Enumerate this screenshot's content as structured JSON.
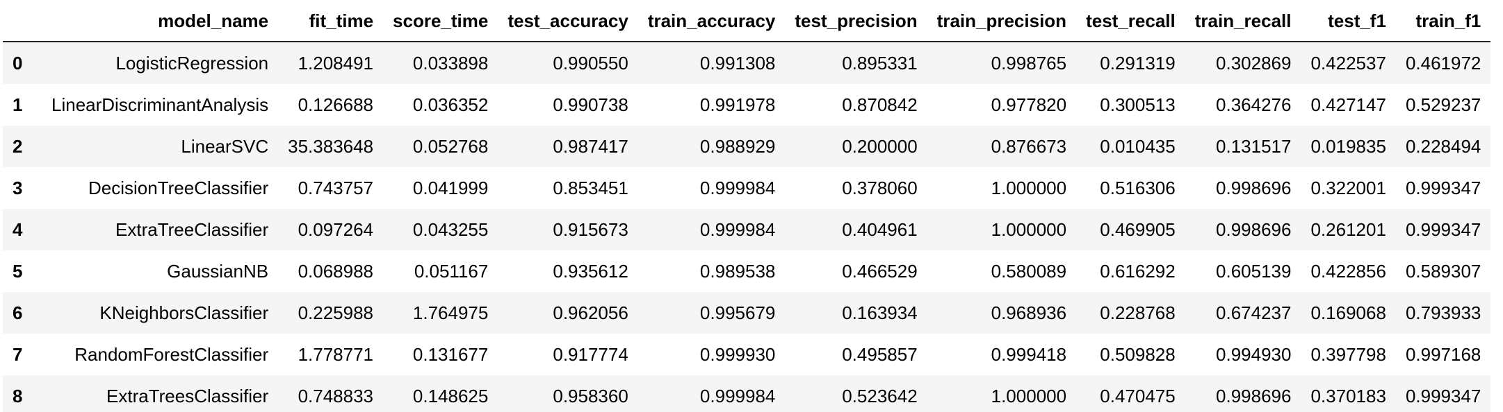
{
  "table": {
    "columns": [
      "model_name",
      "fit_time",
      "score_time",
      "test_accuracy",
      "train_accuracy",
      "test_precision",
      "train_precision",
      "test_recall",
      "train_recall",
      "test_f1",
      "train_f1"
    ],
    "rows": [
      {
        "index": "0",
        "cells": [
          "LogisticRegression",
          "1.208491",
          "0.033898",
          "0.990550",
          "0.991308",
          "0.895331",
          "0.998765",
          "0.291319",
          "0.302869",
          "0.422537",
          "0.461972"
        ]
      },
      {
        "index": "1",
        "cells": [
          "LinearDiscriminantAnalysis",
          "0.126688",
          "0.036352",
          "0.990738",
          "0.991978",
          "0.870842",
          "0.977820",
          "0.300513",
          "0.364276",
          "0.427147",
          "0.529237"
        ]
      },
      {
        "index": "2",
        "cells": [
          "LinearSVC",
          "35.383648",
          "0.052768",
          "0.987417",
          "0.988929",
          "0.200000",
          "0.876673",
          "0.010435",
          "0.131517",
          "0.019835",
          "0.228494"
        ]
      },
      {
        "index": "3",
        "cells": [
          "DecisionTreeClassifier",
          "0.743757",
          "0.041999",
          "0.853451",
          "0.999984",
          "0.378060",
          "1.000000",
          "0.516306",
          "0.998696",
          "0.322001",
          "0.999347"
        ]
      },
      {
        "index": "4",
        "cells": [
          "ExtraTreeClassifier",
          "0.097264",
          "0.043255",
          "0.915673",
          "0.999984",
          "0.404961",
          "1.000000",
          "0.469905",
          "0.998696",
          "0.261201",
          "0.999347"
        ]
      },
      {
        "index": "5",
        "cells": [
          "GaussianNB",
          "0.068988",
          "0.051167",
          "0.935612",
          "0.989538",
          "0.466529",
          "0.580089",
          "0.616292",
          "0.605139",
          "0.422856",
          "0.589307"
        ]
      },
      {
        "index": "6",
        "cells": [
          "KNeighborsClassifier",
          "0.225988",
          "1.764975",
          "0.962056",
          "0.995679",
          "0.163934",
          "0.968936",
          "0.228768",
          "0.674237",
          "0.169068",
          "0.793933"
        ]
      },
      {
        "index": "7",
        "cells": [
          "RandomForestClassifier",
          "1.778771",
          "0.131677",
          "0.917774",
          "0.999930",
          "0.495857",
          "0.999418",
          "0.509828",
          "0.994930",
          "0.397798",
          "0.997168"
        ]
      },
      {
        "index": "8",
        "cells": [
          "ExtraTreesClassifier",
          "0.748833",
          "0.148625",
          "0.958360",
          "0.999984",
          "0.523642",
          "1.000000",
          "0.470475",
          "0.998696",
          "0.370183",
          "0.999347"
        ]
      }
    ]
  }
}
